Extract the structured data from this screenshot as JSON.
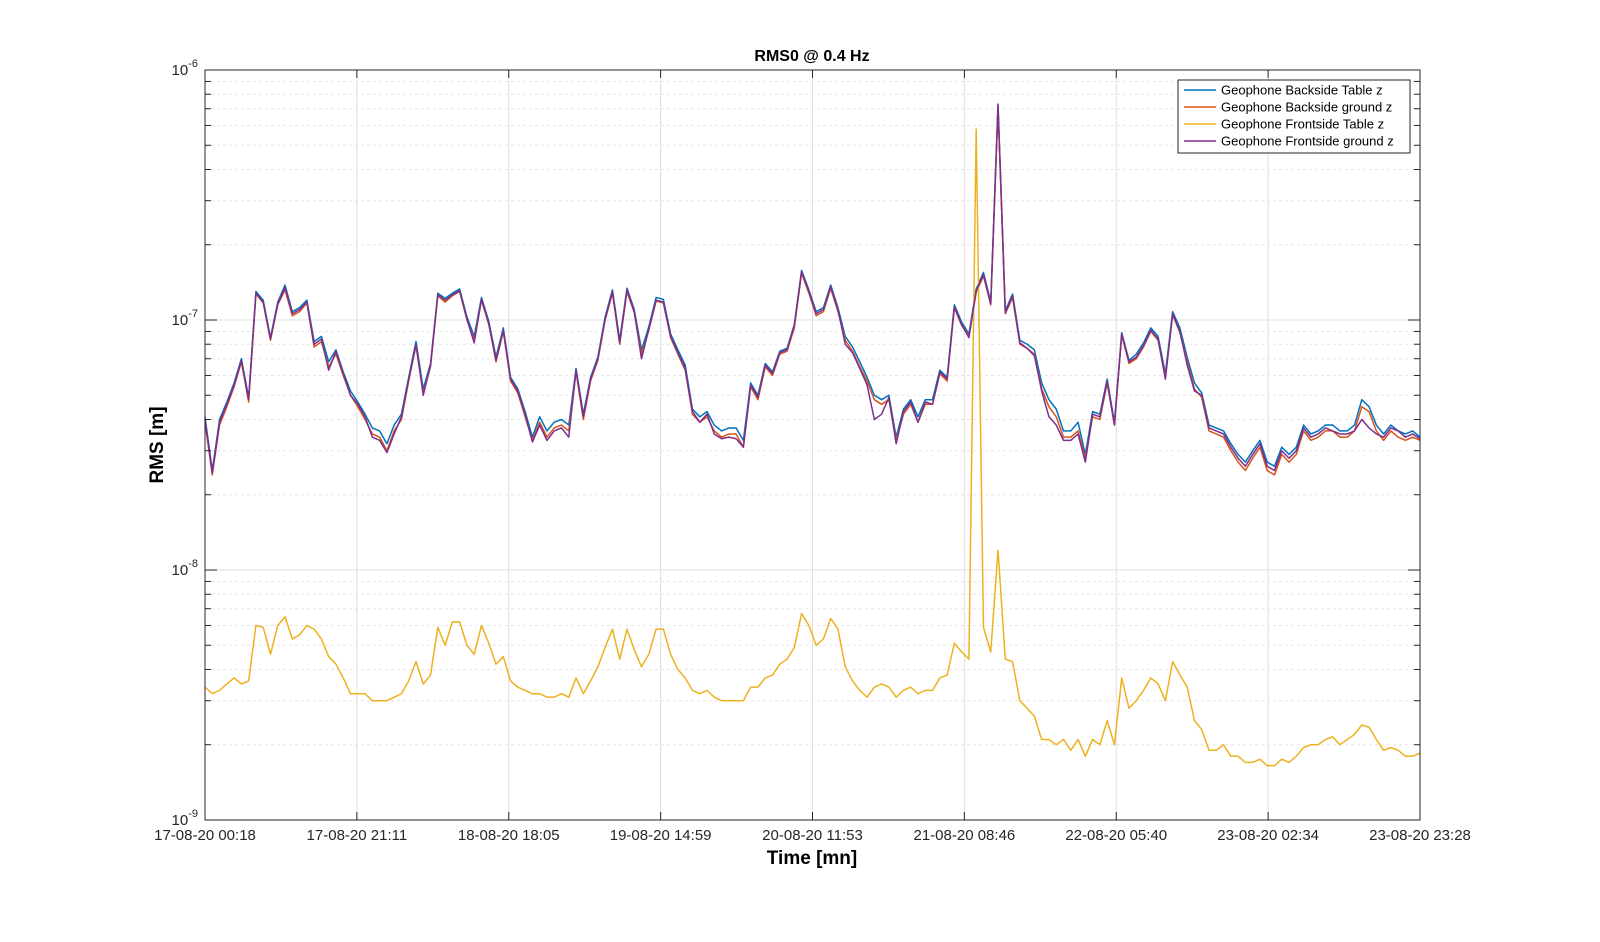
{
  "chart_data": {
    "type": "line",
    "title": "RMS0 @ 0.4 Hz",
    "xlabel": "Time [mn]",
    "ylabel": "RMS [m]",
    "yscale": "log",
    "ylim": [
      1e-09,
      1e-06
    ],
    "y_tick_labels": [
      {
        "base": "10",
        "exp": "-9"
      },
      {
        "base": "10",
        "exp": "-8"
      },
      {
        "base": "10",
        "exp": "-7"
      },
      {
        "base": "10",
        "exp": "-6"
      }
    ],
    "x_tick_labels": [
      "17-08-20 00:18",
      "17-08-20 21:11",
      "18-08-20 18:05",
      "19-08-20 14:59",
      "20-08-20 11:53",
      "21-08-20 08:46",
      "22-08-20 05:40",
      "23-08-20 02:34",
      "23-08-20 23:28"
    ],
    "grid": true,
    "legend_position": "top-right",
    "series": [
      {
        "name": "Geophone Backside Table z",
        "color": "#0072BD",
        "values": [
          4.1e-08,
          2.5e-08,
          4e-08,
          4.7e-08,
          5.6e-08,
          7e-08,
          4.9e-08,
          1.3e-07,
          1.2e-07,
          8.5e-08,
          1.18e-07,
          1.38e-07,
          1.08e-07,
          1.12e-07,
          1.2e-07,
          8.2e-08,
          8.6e-08,
          6.8e-08,
          7.6e-08,
          6.2e-08,
          5.2e-08,
          4.7e-08,
          4.2e-08,
          3.7e-08,
          3.6e-08,
          3.2e-08,
          3.8e-08,
          4.2e-08,
          5.9e-08,
          8.2e-08,
          5.3e-08,
          6.7e-08,
          1.28e-07,
          1.22e-07,
          1.28e-07,
          1.33e-07,
          1.03e-07,
          8.6e-08,
          1.23e-07,
          9.9e-08,
          7.1e-08,
          9.3e-08,
          5.9e-08,
          5.3e-08,
          4.3e-08,
          3.4e-08,
          4.1e-08,
          3.6e-08,
          3.9e-08,
          4e-08,
          3.8e-08,
          6.4e-08,
          4.2e-08,
          5.9e-08,
          7.1e-08,
          1.03e-07,
          1.32e-07,
          8.3e-08,
          1.34e-07,
          1.1e-07,
          7.6e-08,
          9.4e-08,
          1.23e-07,
          1.21e-07,
          8.8e-08,
          7.6e-08,
          6.6e-08,
          4.4e-08,
          4.1e-08,
          4.3e-08,
          3.8e-08,
          3.6e-08,
          3.7e-08,
          3.7e-08,
          3.3e-08,
          5.6e-08,
          5e-08,
          6.7e-08,
          6.2e-08,
          7.5e-08,
          7.7e-08,
          9.6e-08,
          1.58e-07,
          1.32e-07,
          1.08e-07,
          1.12e-07,
          1.38e-07,
          1.12e-07,
          8.6e-08,
          7.8e-08,
          6.8e-08,
          5.9e-08,
          5e-08,
          4.8e-08,
          5e-08,
          3.4e-08,
          4.4e-08,
          4.8e-08,
          4.1e-08,
          4.8e-08,
          4.8e-08,
          6.3e-08,
          5.9e-08,
          1.15e-07,
          9.8e-08,
          8.8e-08,
          1.33e-07,
          1.55e-07,
          1.18e-07,
          7.2e-07,
          1.09e-07,
          1.27e-07,
          8.3e-08,
          8e-08,
          7.6e-08,
          5.6e-08,
          4.8e-08,
          4.4e-08,
          3.6e-08,
          3.6e-08,
          3.9e-08,
          2.9e-08,
          4.3e-08,
          4.2e-08,
          5.8e-08,
          3.9e-08,
          8.9e-08,
          6.9e-08,
          7.3e-08,
          8.1e-08,
          9.3e-08,
          8.6e-08,
          6.1e-08,
          1.08e-07,
          9.3e-08,
          7.1e-08,
          5.6e-08,
          5.1e-08,
          3.8e-08,
          3.7e-08,
          3.6e-08,
          3.2e-08,
          2.9e-08,
          2.7e-08,
          3e-08,
          3.3e-08,
          2.7e-08,
          2.6e-08,
          3.1e-08,
          2.9e-08,
          3.1e-08,
          3.8e-08,
          3.5e-08,
          3.6e-08,
          3.8e-08,
          3.8e-08,
          3.6e-08,
          3.6e-08,
          3.8e-08,
          4.8e-08,
          4.5e-08,
          3.8e-08,
          3.5e-08,
          3.8e-08,
          3.6e-08,
          3.5e-08,
          3.6e-08,
          3.4e-08
        ]
      },
      {
        "name": "Geophone Backside ground z",
        "color": "#D95319",
        "values": [
          3.9e-08,
          2.4e-08,
          3.8e-08,
          4.5e-08,
          5.4e-08,
          6.8e-08,
          4.7e-08,
          1.27e-07,
          1.17e-07,
          8.3e-08,
          1.15e-07,
          1.32e-07,
          1.04e-07,
          1.08e-07,
          1.17e-07,
          7.8e-08,
          8.2e-08,
          6.5e-08,
          7.3e-08,
          6e-08,
          5e-08,
          4.5e-08,
          4e-08,
          3.5e-08,
          3.4e-08,
          3e-08,
          3.6e-08,
          4e-08,
          5.7e-08,
          7.9e-08,
          5.1e-08,
          6.5e-08,
          1.25e-07,
          1.18e-07,
          1.25e-07,
          1.3e-07,
          1e-07,
          8.3e-08,
          1.2e-07,
          9.6e-08,
          6.8e-08,
          9e-08,
          5.7e-08,
          5.1e-08,
          4.1e-08,
          3.3e-08,
          3.9e-08,
          3.4e-08,
          3.7e-08,
          3.8e-08,
          3.6e-08,
          6.2e-08,
          4e-08,
          5.7e-08,
          6.9e-08,
          1e-07,
          1.28e-07,
          8e-08,
          1.3e-07,
          1.07e-07,
          7.3e-08,
          9.1e-08,
          1.19e-07,
          1.17e-07,
          8.5e-08,
          7.3e-08,
          6.3e-08,
          4.2e-08,
          3.9e-08,
          4.1e-08,
          3.6e-08,
          3.4e-08,
          3.5e-08,
          3.5e-08,
          3.1e-08,
          5.4e-08,
          4.8e-08,
          6.5e-08,
          6e-08,
          7.3e-08,
          7.5e-08,
          9.3e-08,
          1.54e-07,
          1.28e-07,
          1.04e-07,
          1.08e-07,
          1.34e-07,
          1.08e-07,
          8.3e-08,
          7.5e-08,
          6.5e-08,
          5.7e-08,
          4.8e-08,
          4.6e-08,
          4.8e-08,
          3.3e-08,
          4.2e-08,
          4.6e-08,
          3.9e-08,
          4.6e-08,
          4.6e-08,
          6.1e-08,
          5.7e-08,
          1.12e-07,
          9.5e-08,
          8.6e-08,
          1.29e-07,
          1.5e-07,
          1.15e-07,
          7e-07,
          1.06e-07,
          1.23e-07,
          8e-08,
          7.7e-08,
          7.3e-08,
          5.3e-08,
          4.5e-08,
          4.1e-08,
          3.4e-08,
          3.4e-08,
          3.6e-08,
          2.8e-08,
          4.1e-08,
          4e-08,
          5.6e-08,
          3.8e-08,
          8.7e-08,
          6.7e-08,
          7e-08,
          7.8e-08,
          9e-08,
          8.3e-08,
          5.9e-08,
          1.05e-07,
          8.9e-08,
          6.8e-08,
          5.3e-08,
          4.9e-08,
          3.6e-08,
          3.5e-08,
          3.4e-08,
          3e-08,
          2.7e-08,
          2.5e-08,
          2.8e-08,
          3.1e-08,
          2.5e-08,
          2.4e-08,
          2.9e-08,
          2.7e-08,
          2.9e-08,
          3.6e-08,
          3.3e-08,
          3.4e-08,
          3.6e-08,
          3.6e-08,
          3.4e-08,
          3.4e-08,
          3.6e-08,
          4.5e-08,
          4.3e-08,
          3.6e-08,
          3.3e-08,
          3.6e-08,
          3.4e-08,
          3.3e-08,
          3.4e-08,
          3.3e-08
        ]
      },
      {
        "name": "Geophone Frontside Table z",
        "color": "#EDB120",
        "values": [
          3.4e-09,
          3.2e-09,
          3.3e-09,
          3.5e-09,
          3.7e-09,
          3.5e-09,
          3.6e-09,
          6e-09,
          5.9e-09,
          4.6e-09,
          6e-09,
          6.5e-09,
          5.3e-09,
          5.5e-09,
          6e-09,
          5.8e-09,
          5.3e-09,
          4.5e-09,
          4.2e-09,
          3.7e-09,
          3.2e-09,
          3.2e-09,
          3.2e-09,
          3e-09,
          3e-09,
          3e-09,
          3.1e-09,
          3.2e-09,
          3.6e-09,
          4.3e-09,
          3.5e-09,
          3.8e-09,
          5.9e-09,
          5e-09,
          6.2e-09,
          6.2e-09,
          5e-09,
          4.6e-09,
          6e-09,
          5.1e-09,
          4.2e-09,
          4.5e-09,
          3.6e-09,
          3.4e-09,
          3.3e-09,
          3.2e-09,
          3.2e-09,
          3.1e-09,
          3.1e-09,
          3.2e-09,
          3.1e-09,
          3.7e-09,
          3.2e-09,
          3.6e-09,
          4.1e-09,
          4.9e-09,
          5.8e-09,
          4.4e-09,
          5.8e-09,
          4.8e-09,
          4.1e-09,
          4.6e-09,
          5.8e-09,
          5.8e-09,
          4.6e-09,
          4e-09,
          3.7e-09,
          3.3e-09,
          3.2e-09,
          3.3e-09,
          3.1e-09,
          3e-09,
          3e-09,
          3e-09,
          3e-09,
          3.4e-09,
          3.4e-09,
          3.7e-09,
          3.8e-09,
          4.2e-09,
          4.4e-09,
          4.9e-09,
          6.7e-09,
          6e-09,
          5e-09,
          5.3e-09,
          6.4e-09,
          5.8e-09,
          4.1e-09,
          3.6e-09,
          3.3e-09,
          3.1e-09,
          3.4e-09,
          3.5e-09,
          3.4e-09,
          3.1e-09,
          3.3e-09,
          3.4e-09,
          3.2e-09,
          3.3e-09,
          3.3e-09,
          3.7e-09,
          3.8e-09,
          5.1e-09,
          4.7e-09,
          4.4e-09,
          5.8e-07,
          5.9e-09,
          4.7e-09,
          1.2e-08,
          4.4e-09,
          4.3e-09,
          3e-09,
          2.8e-09,
          2.6e-09,
          2.1e-09,
          2.1e-09,
          2e-09,
          2.1e-09,
          1.9e-09,
          2.1e-09,
          1.8e-09,
          2.1e-09,
          2e-09,
          2.5e-09,
          2e-09,
          3.7e-09,
          2.8e-09,
          3e-09,
          3.3e-09,
          3.7e-09,
          3.5e-09,
          3e-09,
          4.3e-09,
          3.8e-09,
          3.4e-09,
          2.5e-09,
          2.3e-09,
          1.9e-09,
          1.9e-09,
          2e-09,
          1.8e-09,
          1.8e-09,
          1.7e-09,
          1.7e-09,
          1.75e-09,
          1.65e-09,
          1.65e-09,
          1.75e-09,
          1.7e-09,
          1.8e-09,
          1.95e-09,
          2e-09,
          2e-09,
          2.1e-09,
          2.15e-09,
          2e-09,
          2.1e-09,
          2.2e-09,
          2.4e-09,
          2.35e-09,
          2.1e-09,
          1.9e-09,
          1.95e-09,
          1.9e-09,
          1.8e-09,
          1.8e-09,
          1.85e-09
        ]
      },
      {
        "name": "Geophone Frontside ground z",
        "color": "#7E2F8E",
        "values": [
          4e-08,
          2.45e-08,
          3.9e-08,
          4.6e-08,
          5.5e-08,
          6.9e-08,
          4.8e-08,
          1.28e-07,
          1.18e-07,
          8.4e-08,
          1.16e-07,
          1.35e-07,
          1.06e-07,
          1.1e-07,
          1.18e-07,
          8e-08,
          8.4e-08,
          6.3e-08,
          7.5e-08,
          6.1e-08,
          5e-08,
          4.6e-08,
          4.1e-08,
          3.4e-08,
          3.3e-08,
          2.95e-08,
          3.5e-08,
          4.1e-08,
          5.8e-08,
          8e-08,
          5e-08,
          6.6e-08,
          1.26e-07,
          1.2e-07,
          1.26e-07,
          1.31e-07,
          1.01e-07,
          8.1e-08,
          1.21e-07,
          9.7e-08,
          6.9e-08,
          9.1e-08,
          5.8e-08,
          5.2e-08,
          4.2e-08,
          3.25e-08,
          3.8e-08,
          3.3e-08,
          3.6e-08,
          3.7e-08,
          3.4e-08,
          6.3e-08,
          4.1e-08,
          5.8e-08,
          7e-08,
          1.01e-07,
          1.3e-07,
          8.1e-08,
          1.32e-07,
          1.08e-07,
          7e-08,
          9.2e-08,
          1.2e-07,
          1.18e-07,
          8.6e-08,
          7.4e-08,
          6.4e-08,
          4.3e-08,
          3.9e-08,
          4.2e-08,
          3.5e-08,
          3.35e-08,
          3.4e-08,
          3.35e-08,
          3.1e-08,
          5.5e-08,
          4.9e-08,
          6.6e-08,
          6.1e-08,
          7.4e-08,
          7.6e-08,
          9.5e-08,
          1.56e-07,
          1.3e-07,
          1.06e-07,
          1.1e-07,
          1.36e-07,
          1.1e-07,
          8e-08,
          7.4e-08,
          6.4e-08,
          5.5e-08,
          4e-08,
          4.2e-08,
          4.9e-08,
          3.2e-08,
          4.3e-08,
          4.7e-08,
          3.9e-08,
          4.7e-08,
          4.6e-08,
          6.2e-08,
          5.8e-08,
          1.13e-07,
          9.6e-08,
          8.5e-08,
          1.31e-07,
          1.52e-07,
          1.16e-07,
          7.3e-07,
          1.07e-07,
          1.25e-07,
          8.1e-08,
          7.7e-08,
          7.2e-08,
          5.2e-08,
          4.1e-08,
          3.8e-08,
          3.3e-08,
          3.3e-08,
          3.5e-08,
          2.7e-08,
          4.2e-08,
          4.1e-08,
          5.7e-08,
          3.8e-08,
          8.8e-08,
          6.8e-08,
          7.1e-08,
          7.9e-08,
          9.1e-08,
          8.4e-08,
          5.8e-08,
          1.06e-07,
          9e-08,
          6.6e-08,
          5.2e-08,
          5e-08,
          3.7e-08,
          3.6e-08,
          3.5e-08,
          3.1e-08,
          2.8e-08,
          2.6e-08,
          2.9e-08,
          3.2e-08,
          2.6e-08,
          2.5e-08,
          3e-08,
          2.8e-08,
          3e-08,
          3.7e-08,
          3.4e-08,
          3.5e-08,
          3.7e-08,
          3.6e-08,
          3.5e-08,
          3.5e-08,
          3.6e-08,
          4e-08,
          3.7e-08,
          3.5e-08,
          3.4e-08,
          3.7e-08,
          3.6e-08,
          3.4e-08,
          3.5e-08,
          3.35e-08
        ]
      }
    ]
  }
}
